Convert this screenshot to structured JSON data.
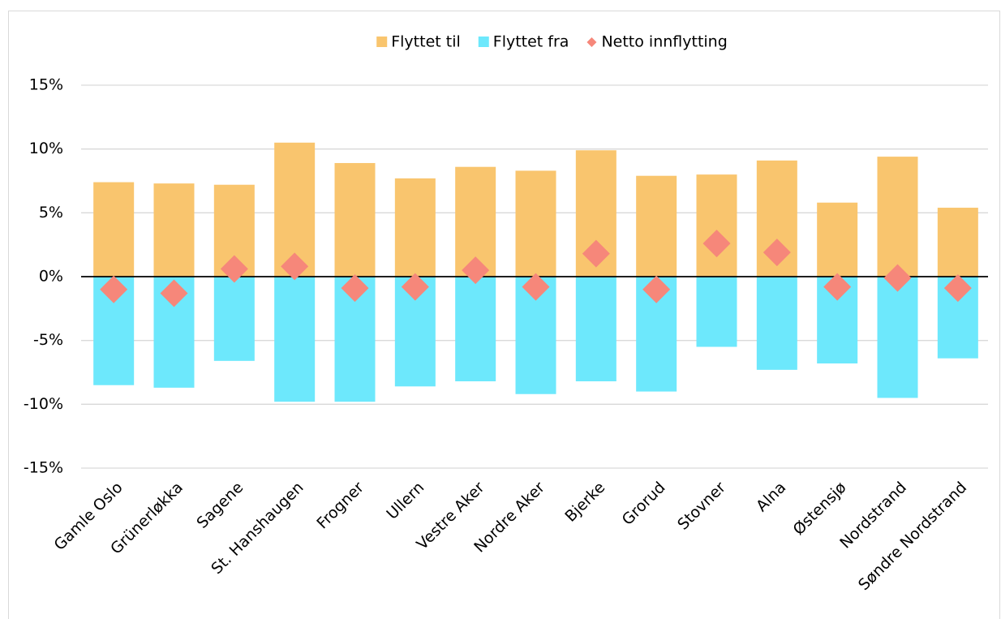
{
  "chart_data": {
    "type": "bar",
    "categories": [
      "Gamle Oslo",
      "Grünerløkka",
      "Sagene",
      "St. Hanshaugen",
      "Frogner",
      "Ullern",
      "Vestre Aker",
      "Nordre Aker",
      "Bjerke",
      "Grorud",
      "Stovner",
      "Alna",
      "Østensjø",
      "Nordstrand",
      "Søndre Nordstrand"
    ],
    "series": [
      {
        "name": "Flyttet til",
        "color": "#f9c56e",
        "values": [
          7.4,
          7.3,
          7.2,
          10.5,
          8.9,
          7.7,
          8.6,
          8.3,
          9.9,
          7.9,
          8.0,
          9.1,
          5.8,
          9.4,
          5.4
        ]
      },
      {
        "name": "Flyttet fra",
        "color": "#6de8fc",
        "values": [
          -8.5,
          -8.7,
          -6.6,
          -9.8,
          -9.8,
          -8.6,
          -8.2,
          -9.2,
          -8.2,
          -9.0,
          -5.5,
          -7.3,
          -6.8,
          -9.5,
          -6.4
        ]
      },
      {
        "name": "Netto innflytting",
        "color": "#f6877a",
        "marker": "diamond",
        "values": [
          -1.0,
          -1.3,
          0.6,
          0.8,
          -0.9,
          -0.8,
          0.5,
          -0.8,
          1.8,
          -1.0,
          2.6,
          1.9,
          -0.8,
          -0.1,
          -0.9
        ]
      }
    ],
    "ylim": [
      -15,
      15
    ],
    "yticks": [
      {
        "value": -15,
        "label": "-15%"
      },
      {
        "value": -10,
        "label": "-10%"
      },
      {
        "value": -5,
        "label": "-5%"
      },
      {
        "value": 0,
        "label": "0%"
      },
      {
        "value": 5,
        "label": "5%"
      },
      {
        "value": 10,
        "label": "10%"
      },
      {
        "value": 15,
        "label": "15%"
      }
    ],
    "grid": true,
    "legend": "top"
  }
}
